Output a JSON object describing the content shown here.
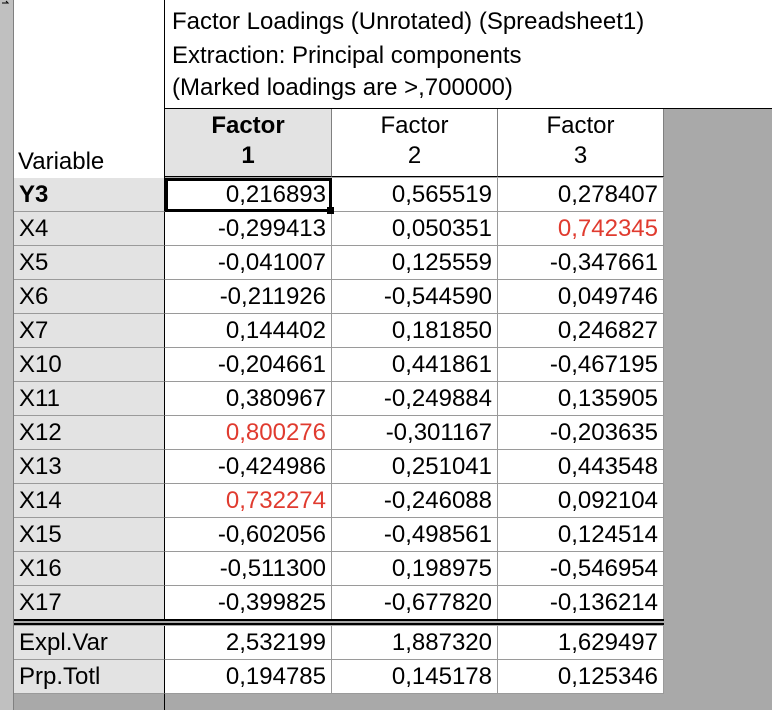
{
  "title": {
    "line1": "Factor Loadings (Unrotated) (Spreadsheet1)",
    "line2": "Extraction: Principal components",
    "line3": "(Marked loadings are >,700000)"
  },
  "variable_header": "Variable",
  "columns": [
    {
      "line1": "Factor",
      "line2": "1"
    },
    {
      "line1": "Factor",
      "line2": "2"
    },
    {
      "line1": "Factor",
      "line2": "3"
    }
  ],
  "rows": [
    {
      "label": "Y3",
      "values": [
        "0,216893",
        "0,565519",
        "0,278407"
      ]
    },
    {
      "label": "X4",
      "values": [
        "-0,299413",
        "0,050351",
        "0,742345"
      ]
    },
    {
      "label": "X5",
      "values": [
        "-0,041007",
        "0,125559",
        "-0,347661"
      ]
    },
    {
      "label": "X6",
      "values": [
        "-0,211926",
        "-0,544590",
        "0,049746"
      ]
    },
    {
      "label": "X7",
      "values": [
        "0,144402",
        "0,181850",
        "0,246827"
      ]
    },
    {
      "label": "X10",
      "values": [
        "-0,204661",
        "0,441861",
        "-0,467195"
      ]
    },
    {
      "label": "X11",
      "values": [
        "0,380967",
        "-0,249884",
        "0,135905"
      ]
    },
    {
      "label": "X12",
      "values": [
        "0,800276",
        "-0,301167",
        "-0,203635"
      ]
    },
    {
      "label": "X13",
      "values": [
        "-0,424986",
        "0,251041",
        "0,443548"
      ]
    },
    {
      "label": "X14",
      "values": [
        "0,732274",
        "-0,246088",
        "0,092104"
      ]
    },
    {
      "label": "X15",
      "values": [
        "-0,602056",
        "-0,498561",
        "0,124514"
      ]
    },
    {
      "label": "X16",
      "values": [
        "-0,511300",
        "0,198975",
        "-0,546954"
      ]
    },
    {
      "label": "X17",
      "values": [
        "-0,399825",
        "-0,677820",
        "-0,136214"
      ]
    }
  ],
  "summary_rows": [
    {
      "label": "Expl.Var",
      "values": [
        "2,532199",
        "1,887320",
        "1,629497"
      ]
    },
    {
      "label": "Prp.Totl",
      "values": [
        "0,194785",
        "0,145178",
        "0,125346"
      ]
    }
  ],
  "highlight_threshold": 0.7,
  "colors": {
    "highlight": "#e03b2f",
    "header_active": "#e3e3e3",
    "background": "#a9a9a9"
  },
  "selected_cell": {
    "row": 0,
    "col": 0
  }
}
